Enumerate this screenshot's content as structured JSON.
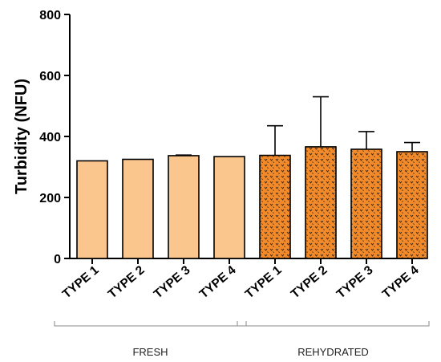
{
  "chart_data": {
    "type": "bar",
    "title": "",
    "xlabel": "",
    "ylabel": "Turbidity (NFU)",
    "ylim": [
      0,
      800
    ],
    "yticks": [
      0,
      200,
      400,
      600,
      800
    ],
    "grid": false,
    "categories": [
      "TYPE 1",
      "TYPE 2",
      "TYPE 3",
      "TYPE 4",
      "TYPE 1",
      "TYPE 2",
      "TYPE 3",
      "TYPE 4"
    ],
    "groups": [
      {
        "label": "FRESH",
        "indices": [
          0,
          1,
          2,
          3
        ]
      },
      {
        "label": "REHYDRATED",
        "indices": [
          4,
          5,
          6,
          7
        ]
      }
    ],
    "values": [
      320,
      325,
      337,
      334,
      338,
      366,
      358,
      350
    ],
    "error_upper": [
      0,
      0,
      2,
      0,
      97,
      164,
      58,
      30
    ],
    "fill_colors": [
      "#FBC58E",
      "#FBC58E",
      "#FBC58E",
      "#FBC58E",
      "#F08A2A",
      "#F08A2A",
      "#F08A2A",
      "#F08A2A"
    ]
  }
}
